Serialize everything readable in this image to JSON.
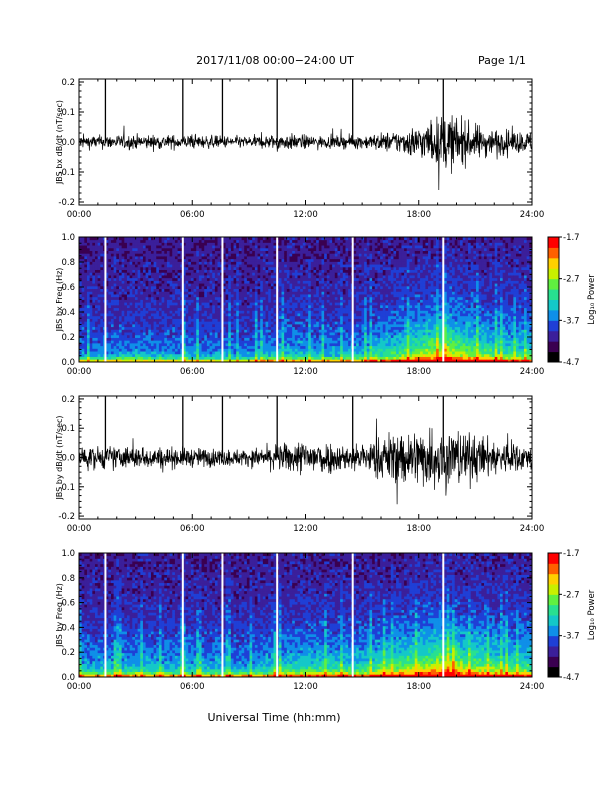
{
  "header": {
    "title": "2017/11/08  00:00−24:00 UT",
    "page": "Page 1/1"
  },
  "colors": {
    "colormap": [
      "#000000",
      "#3a0050",
      "#3b1f9a",
      "#1f3fd6",
      "#0f8fe8",
      "#14c8c8",
      "#28e090",
      "#60f040",
      "#c8f000",
      "#ffd000",
      "#ff6000",
      "#ff0000"
    ],
    "trace": "#000000",
    "gap": "#ffffff"
  },
  "xlabel": "Universal Time (hh:mm)",
  "chart_data": [
    {
      "id": "bx-wave",
      "type": "line",
      "ylabel": "JBS bx dB/dt (nT/sec)",
      "xlim": [
        0,
        24
      ],
      "ylim": [
        -0.21,
        0.21
      ],
      "xticks": [
        "00:00",
        "06:00",
        "12:00",
        "18:00",
        "24:00"
      ],
      "yticks": [
        "0.2",
        "0.1",
        "0.0",
        "-0.1",
        "-0.2"
      ],
      "spikes_at_hours": [
        1.4,
        5.5,
        7.6,
        10.5,
        14.5,
        19.3
      ],
      "activity_envelope": {
        "x": [
          0,
          3,
          6,
          9,
          11,
          13,
          15,
          17,
          18.5,
          19.5,
          20.5,
          22,
          24
        ],
        "amp": [
          0.04,
          0.045,
          0.04,
          0.035,
          0.05,
          0.035,
          0.04,
          0.07,
          0.12,
          0.18,
          0.12,
          0.08,
          0.06
        ]
      }
    },
    {
      "id": "bx-spec",
      "type": "heatmap",
      "ylabel": "JBS bx Freq (Hz)",
      "xlim": [
        0,
        24
      ],
      "ylim": [
        0,
        1.0
      ],
      "xticks": [
        "00:00",
        "06:00",
        "12:00",
        "18:00",
        "24:00"
      ],
      "yticks": [
        "1.0",
        "0.8",
        "0.6",
        "0.4",
        "0.2",
        "0.0"
      ],
      "colorbar": {
        "label": "Log₁₀ Power",
        "range": [
          -4.7,
          -1.7
        ],
        "ticks": [
          "-1.7",
          "-2.7",
          "-3.7",
          "-4.7"
        ]
      },
      "data_gaps_at_hours": [
        1.4,
        5.5,
        7.6,
        10.5,
        14.5,
        19.3
      ]
    },
    {
      "id": "by-wave",
      "type": "line",
      "ylabel": "JBS by dB/dt (nT/sec)",
      "xlim": [
        0,
        24
      ],
      "ylim": [
        -0.21,
        0.21
      ],
      "xticks": [
        "00:00",
        "06:00",
        "12:00",
        "18:00",
        "24:00"
      ],
      "yticks": [
        "0.2",
        "0.1",
        "0.0",
        "-0.1",
        "-0.2"
      ],
      "spikes_at_hours": [
        1.4,
        5.5,
        7.6,
        10.5,
        14.5,
        19.3
      ],
      "activity_envelope": {
        "x": [
          0,
          3,
          6,
          9,
          11,
          12.5,
          14,
          15.5,
          16.5,
          18,
          19.5,
          21,
          22.5,
          24
        ],
        "amp": [
          0.07,
          0.07,
          0.06,
          0.05,
          0.09,
          0.12,
          0.08,
          0.1,
          0.16,
          0.18,
          0.2,
          0.14,
          0.1,
          0.08
        ]
      }
    },
    {
      "id": "by-spec",
      "type": "heatmap",
      "ylabel": "JBS by Freq (Hz)",
      "xlim": [
        0,
        24
      ],
      "ylim": [
        0,
        1.0
      ],
      "xticks": [
        "00:00",
        "06:00",
        "12:00",
        "18:00",
        "24:00"
      ],
      "yticks": [
        "1.0",
        "0.8",
        "0.6",
        "0.4",
        "0.2",
        "0.0"
      ],
      "colorbar": {
        "label": "Log₁₀ Power",
        "range": [
          -4.7,
          -1.7
        ],
        "ticks": [
          "-1.7",
          "-2.7",
          "-3.7",
          "-4.7"
        ]
      },
      "data_gaps_at_hours": [
        1.4,
        5.5,
        7.6,
        10.5,
        14.5,
        19.3
      ]
    }
  ]
}
